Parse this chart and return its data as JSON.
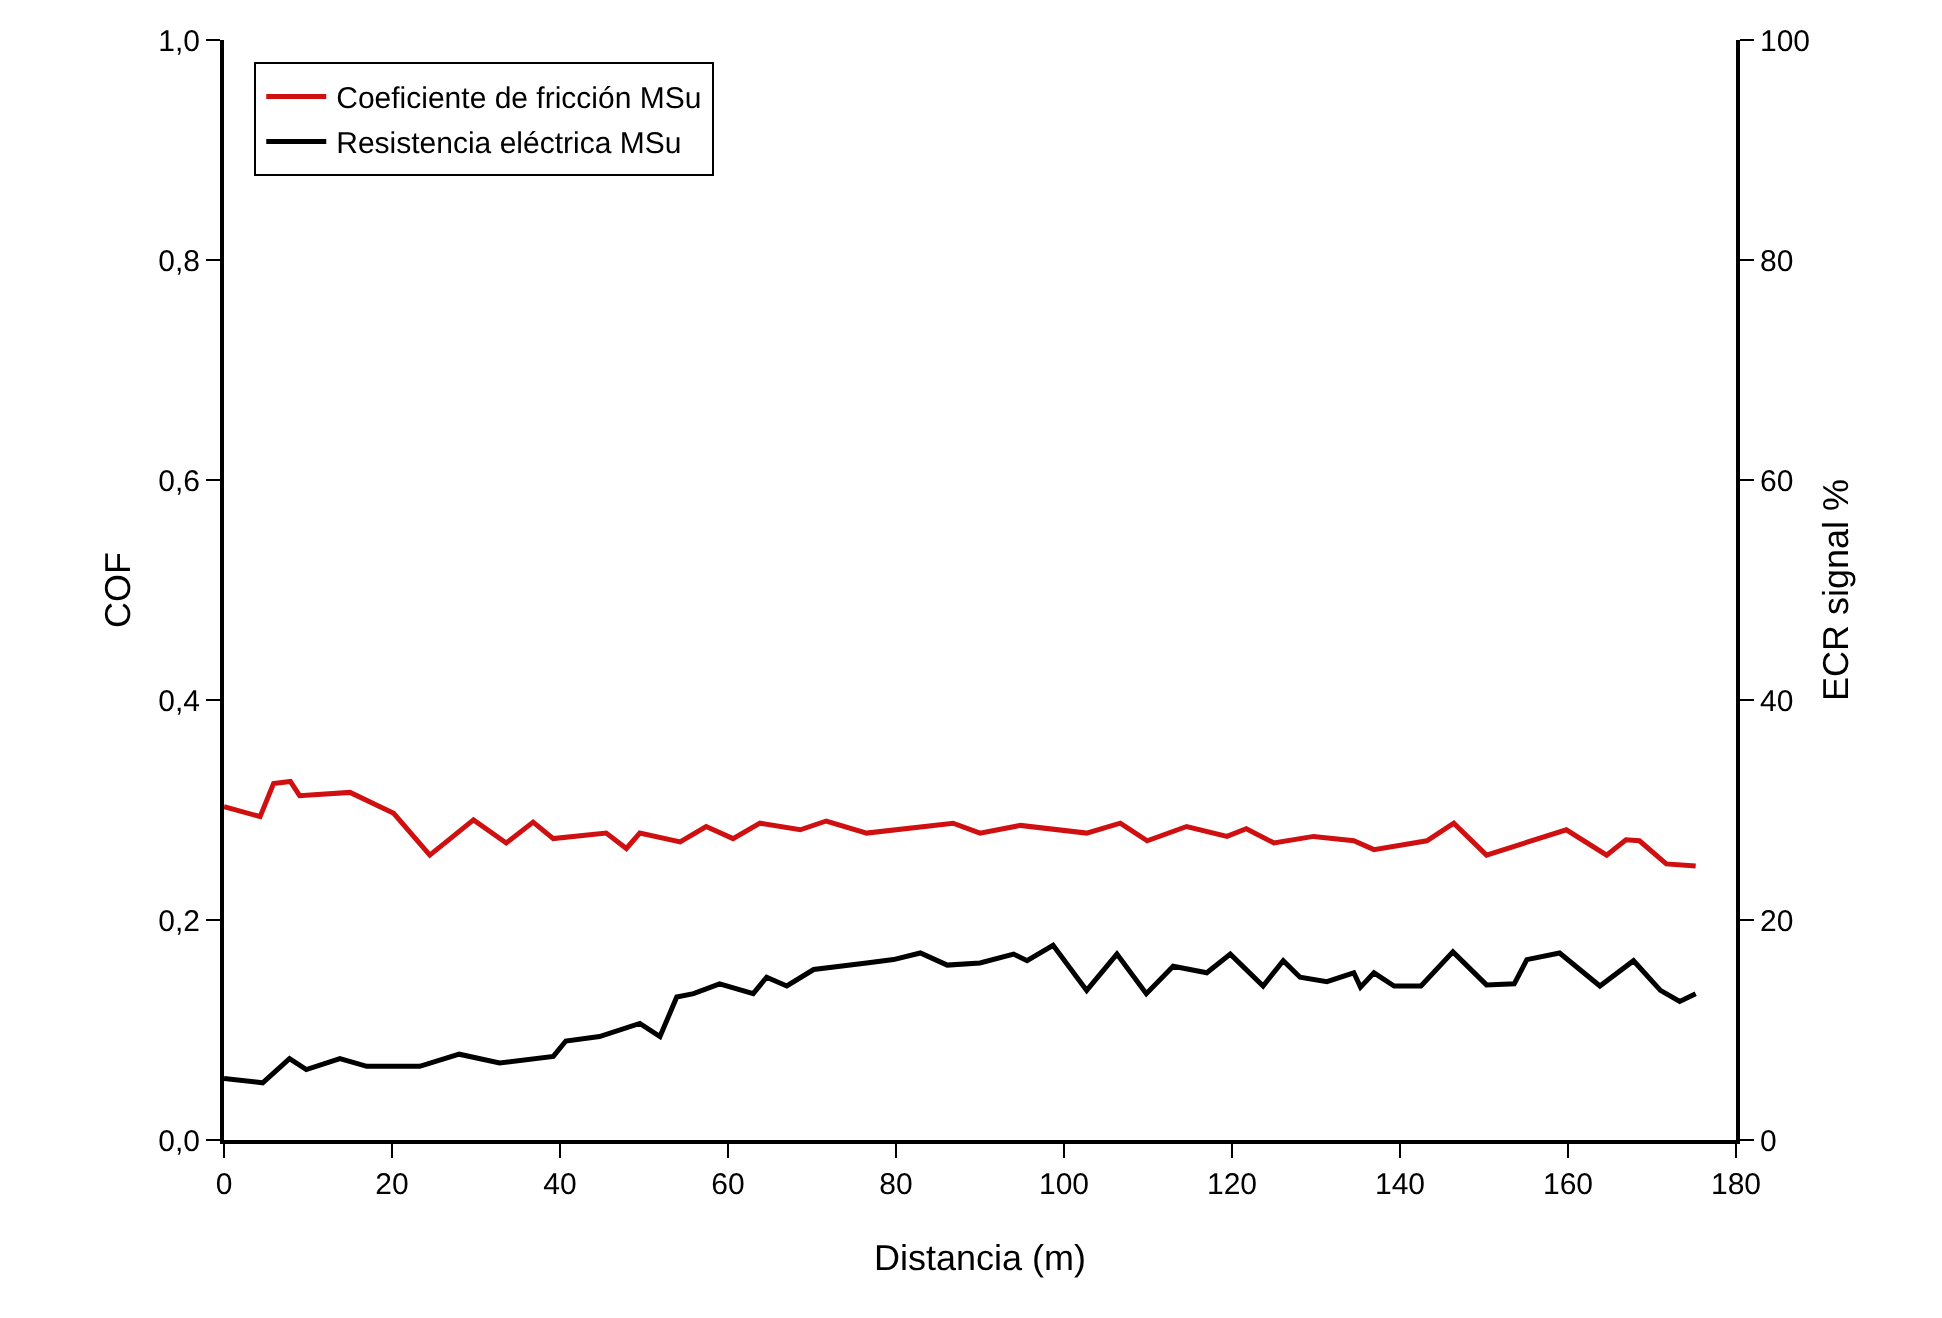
{
  "chart_data": {
    "type": "line",
    "xlabel": "Distancia (m)",
    "ylabel": "COF",
    "y2label": "ECR signal %",
    "xlim": [
      0,
      180
    ],
    "xticks": [
      0,
      20,
      40,
      60,
      80,
      100,
      120,
      140,
      160,
      180
    ],
    "ylim": [
      0,
      1
    ],
    "yticks": [
      {
        "value": 0,
        "label": "0,0"
      },
      {
        "value": 0.2,
        "label": "0,2"
      },
      {
        "value": 0.4,
        "label": "0,4"
      },
      {
        "value": 0.6,
        "label": "0,6"
      },
      {
        "value": 0.8,
        "label": "0,8"
      },
      {
        "value": 1,
        "label": "1,0"
      }
    ],
    "y2lim": [
      0,
      100
    ],
    "y2ticks": [
      0,
      20,
      40,
      60,
      80,
      100
    ],
    "grid": false,
    "legend": "top left",
    "line_style": "solid",
    "marker": "none",
    "series": [
      {
        "name": "Coeficiente de fricción MSu",
        "color": "#d01010",
        "x": [
          0,
          4.3,
          5.9,
          7.9,
          9,
          15,
          20.2,
          24.5,
          29.7,
          33.6,
          36.8,
          39.2,
          45.5,
          47.9,
          49.5,
          54.3,
          57.4,
          60.6,
          63.8,
          68.6,
          71.7,
          76.5,
          86.8,
          90,
          94.8,
          102.7,
          106.7,
          109.9,
          114.6,
          119.4,
          121.7,
          125,
          129.7,
          134.5,
          136.9,
          143.2,
          146.4,
          150.3,
          153.6,
          159.8,
          164.6,
          166.9,
          168.5,
          171.7,
          175.2
        ],
        "values": [
          0.303,
          0.294,
          0.324,
          0.326,
          0.313,
          0.316,
          0.297,
          0.259,
          0.291,
          0.27,
          0.289,
          0.274,
          0.279,
          0.265,
          0.279,
          0.271,
          0.285,
          0.274,
          0.288,
          0.282,
          0.29,
          0.279,
          0.288,
          0.279,
          0.286,
          0.279,
          0.288,
          0.272,
          0.285,
          0.276,
          0.283,
          0.27,
          0.276,
          0.272,
          0.264,
          0.272,
          0.288,
          0.259,
          0.267,
          0.282,
          0.259,
          0.273,
          0.272,
          0.251,
          0.249
        ]
      },
      {
        "name": "Resistencia eléctrica MSu",
        "color": "#000000",
        "axis": "y2",
        "x": [
          0,
          4.6,
          7.8,
          9.8,
          13.8,
          17,
          23.3,
          28,
          32.8,
          39.2,
          40.7,
          44.7,
          49.5,
          51.9,
          53.9,
          55.9,
          59,
          63,
          64.6,
          67,
          70.2,
          76.5,
          79.7,
          82.9,
          86.1,
          90,
          94,
          95.6,
          98.7,
          102.7,
          106.3,
          109.8,
          113,
          117,
          119.8,
          123.7,
          126.1,
          128.1,
          131.3,
          134.5,
          135.3,
          136.9,
          139.3,
          142.5,
          146.3,
          150.3,
          153.6,
          155.1,
          159,
          163.8,
          167.8,
          171,
          173.3,
          175.2
        ],
        "values": [
          5.6,
          5.2,
          7.4,
          6.4,
          7.4,
          6.7,
          6.7,
          7.8,
          7,
          7.6,
          9,
          9.4,
          10.6,
          9.4,
          13,
          13.3,
          14.2,
          13.3,
          14.8,
          14,
          15.5,
          16.1,
          16.4,
          17,
          15.9,
          16.1,
          16.9,
          16.3,
          17.7,
          13.6,
          16.9,
          13.3,
          15.8,
          15.2,
          16.9,
          14,
          16.3,
          14.8,
          14.4,
          15.2,
          13.9,
          15.2,
          14,
          14,
          17.1,
          14.1,
          14.2,
          16.4,
          17,
          14,
          16.3,
          13.6,
          12.6,
          13.3
        ]
      }
    ]
  }
}
